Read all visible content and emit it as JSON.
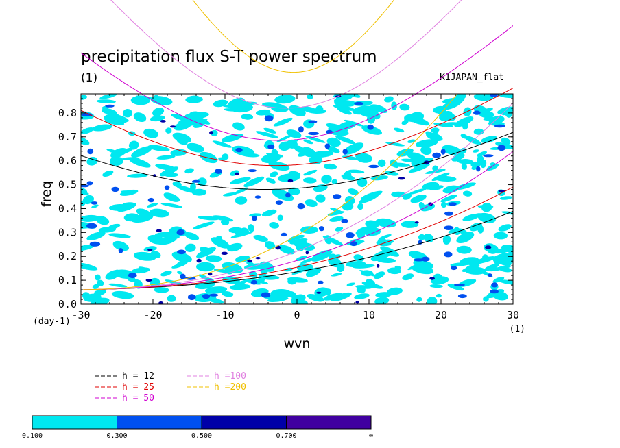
{
  "chart_data": {
    "type": "heatmap",
    "title": "precipitation flux S-T power spectrum",
    "subtitle": "(1)",
    "annotation_right": "K1JAPAN_flat",
    "xlabel": "wvn",
    "ylabel": "freq",
    "x_unit_label": "(1)",
    "y_unit_label": "(day-1)",
    "xlim": [
      -30,
      30
    ],
    "ylim": [
      0,
      0.88
    ],
    "xticks": [
      "-30",
      "-20",
      "-10",
      "0",
      "10",
      "20",
      "30"
    ],
    "xtick_values": [
      -30,
      -20,
      -10,
      0,
      10,
      20,
      30
    ],
    "yticks": [
      "0.0",
      "0.1",
      "0.2",
      "0.3",
      "0.4",
      "0.5",
      "0.6",
      "0.7",
      "0.8"
    ],
    "ytick_values": [
      0,
      0.1,
      0.2,
      0.3,
      0.4,
      0.5,
      0.6,
      0.7,
      0.8
    ],
    "levels": [
      "0.100",
      "0.300",
      "0.500",
      "0.700",
      "∞"
    ],
    "level_colors": [
      "#00e8f0",
      "#0050f0",
      "#0000a8",
      "#4000a0"
    ],
    "series": [
      {
        "name": "h = 12",
        "color": "#000000"
      },
      {
        "name": "h = 25",
        "color": "#e00000"
      },
      {
        "name": "h = 50",
        "color": "#d000d0"
      },
      {
        "name": "h =100",
        "color": "#e080e0"
      },
      {
        "name": "h =200",
        "color": "#f0c000"
      }
    ],
    "grid": false,
    "legend_position": "bottom-left"
  }
}
